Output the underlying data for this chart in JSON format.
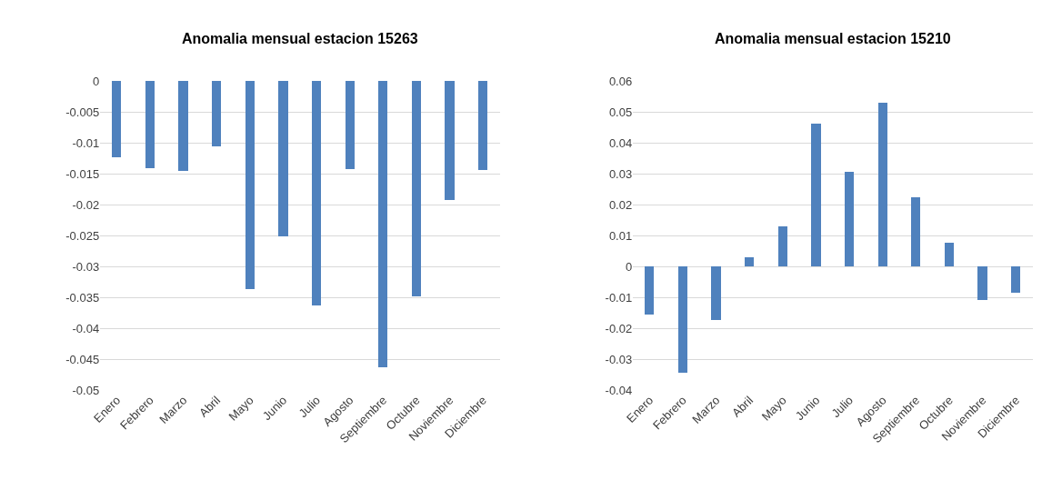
{
  "chart_data": [
    {
      "type": "bar",
      "title": "Anomalia mensual estacion 15263",
      "categories": [
        "Enero",
        "Febrero",
        "Marzo",
        "Abril",
        "Mayo",
        "Junio",
        "Julio",
        "Agosto",
        "Septiembre",
        "Octubre",
        "Noviembre",
        "Diciembre"
      ],
      "values": [
        -0.0124,
        -0.0141,
        -0.0145,
        -0.0106,
        -0.0337,
        -0.0251,
        -0.0363,
        -0.0143,
        -0.0464,
        -0.0348,
        -0.0192,
        -0.0144
      ],
      "color": "#4f81bd",
      "ylim": [
        -0.05,
        0
      ],
      "yticks": [
        0,
        -0.005,
        -0.01,
        -0.015,
        -0.02,
        -0.025,
        -0.03,
        -0.035,
        -0.04,
        -0.045,
        -0.05
      ],
      "grid": "y"
    },
    {
      "type": "bar",
      "title": "Anomalia mensual estacion 15210",
      "categories": [
        "Enero",
        "Febrero",
        "Marzo",
        "Abril",
        "Mayo",
        "Junio",
        "Julio",
        "Agosto",
        "Septiembre",
        "Octubre",
        "Noviembre",
        "Diciembre"
      ],
      "values": [
        -0.0155,
        -0.0345,
        -0.0175,
        0.0028,
        0.013,
        0.0463,
        0.0305,
        0.053,
        0.0223,
        0.0076,
        -0.011,
        -0.0085
      ],
      "color": "#4f81bd",
      "ylim": [
        -0.04,
        0.06
      ],
      "yticks": [
        0.06,
        0.05,
        0.04,
        0.03,
        0.02,
        0.01,
        0,
        -0.01,
        -0.02,
        -0.03,
        -0.04
      ],
      "grid": "y"
    }
  ]
}
